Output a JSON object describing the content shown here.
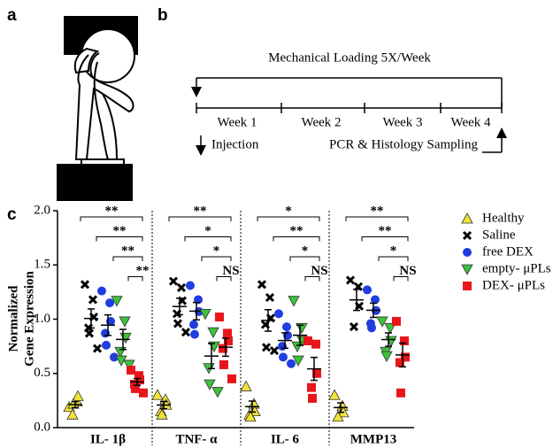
{
  "panel_labels": [
    "a",
    "b",
    "c"
  ],
  "timeline": {
    "loading": "Mechanical Loading 5X/Week",
    "weeks": [
      "Week 1",
      "Week 2",
      "Week 3",
      "Week 4"
    ],
    "injection": "Injection",
    "sampling": "PCR & Histology Sampling"
  },
  "chart_data": {
    "type": "dotplot",
    "ylabel": [
      "Normalized",
      "Gene  Expression"
    ],
    "categories": [
      "IL- 1β",
      "TNF- α",
      "IL- 6",
      "MMP13"
    ],
    "ylim": [
      0,
      2
    ],
    "yticks": [
      {
        "value": 0,
        "label": "0.0"
      },
      {
        "value": 0.5,
        "label": "0.5"
      },
      {
        "value": 1,
        "label": "1.0"
      },
      {
        "value": 1.5,
        "label": "1.5"
      },
      {
        "value": 2,
        "label": "2.0"
      }
    ],
    "series": [
      {
        "name": "Healthy",
        "color": "#f2e33a",
        "marker": "triangle-up",
        "values": [
          [
            0.19,
            0.24,
            0.29,
            0.12,
            0.22
          ],
          [
            0.3,
            0.26,
            0.21,
            0.15,
            0.12
          ],
          [
            0.38,
            0.22,
            0.15,
            0.12,
            0.1
          ],
          [
            0.3,
            0.2,
            0.14,
            0.1
          ]
        ]
      },
      {
        "name": "Saline",
        "color": "#000000",
        "marker": "cross",
        "values": [
          [
            1.32,
            1.18,
            1.02,
            0.92,
            0.87,
            0.73
          ],
          [
            1.35,
            1.29,
            1.17,
            1.05,
            0.96,
            0.88
          ],
          [
            1.32,
            1.2,
            1.01,
            0.95,
            0.74,
            0.71
          ],
          [
            1.36,
            1.3,
            1.12,
            0.93
          ]
        ]
      },
      {
        "name": "free DEX",
        "color": "#1f3de0",
        "marker": "circle",
        "values": [
          [
            1.26,
            1.15,
            0.98,
            0.87,
            0.76,
            0.65
          ],
          [
            1.31,
            1.18,
            1.07,
            0.95,
            0.86
          ],
          [
            1.05,
            0.93,
            0.85,
            0.75,
            0.65,
            0.59
          ],
          [
            1.27,
            1.18,
            1.08,
            0.96,
            0.92
          ]
        ]
      },
      {
        "name": "empty- μPLs",
        "color": "#3cc23c",
        "marker": "triangle-down",
        "values": [
          [
            1.17,
            0.98,
            0.83,
            0.7,
            0.62,
            0.58
          ],
          [
            1.05,
            0.88,
            0.75,
            0.55,
            0.4,
            0.33
          ],
          [
            1.17,
            0.92,
            0.8,
            0.75,
            0.62
          ],
          [
            0.98,
            0.92,
            0.8,
            0.7,
            0.66
          ]
        ]
      },
      {
        "name": "DEX- μPLs",
        "color": "#e8161b",
        "marker": "square",
        "values": [
          [
            0.53,
            0.48,
            0.44,
            0.4,
            0.36,
            0.32
          ],
          [
            1.02,
            0.87,
            0.8,
            0.73,
            0.58,
            0.45
          ],
          [
            0.8,
            0.77,
            0.5,
            0.37,
            0.27
          ],
          [
            0.98,
            0.8,
            0.65,
            0.6,
            0.32
          ]
        ]
      }
    ],
    "brackets": [
      [
        "**",
        "**",
        "**",
        "**"
      ],
      [
        "**",
        "*",
        "*",
        "NS"
      ],
      [
        "*",
        "**",
        "*",
        "NS"
      ],
      [
        "**",
        "**",
        "*",
        "NS"
      ]
    ]
  }
}
